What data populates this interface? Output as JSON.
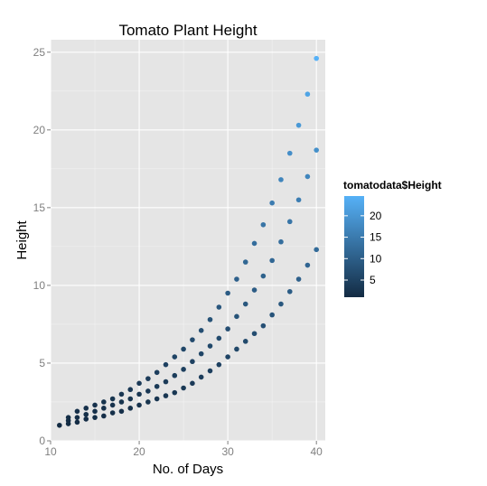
{
  "chart_data": {
    "type": "scatter",
    "title": "Tomato Plant Height",
    "xlabel": "No. of Days",
    "ylabel": "Height",
    "xlim": [
      10,
      41
    ],
    "ylim": [
      0,
      25.8
    ],
    "xticks": [
      10,
      20,
      30,
      40
    ],
    "yticks": [
      0,
      5,
      10,
      15,
      20,
      25
    ],
    "grid": true,
    "legend": {
      "title": "tomatodata$Height",
      "placement": "right",
      "ticks": [
        5,
        10,
        15,
        20
      ],
      "range": [
        1,
        24.6
      ],
      "low_color": "#132B43",
      "high_color": "#56B1F7"
    },
    "series": [
      {
        "values": [
          {
            "x": 11,
            "y": 1.0
          },
          {
            "x": 12,
            "y": 1.5
          },
          {
            "x": 13,
            "y": 1.9
          },
          {
            "x": 14,
            "y": 2.1
          },
          {
            "x": 15,
            "y": 2.3
          },
          {
            "x": 16,
            "y": 2.5
          },
          {
            "x": 17,
            "y": 2.7
          },
          {
            "x": 18,
            "y": 3.0
          },
          {
            "x": 19,
            "y": 3.3
          },
          {
            "x": 20,
            "y": 3.7
          },
          {
            "x": 21,
            "y": 4.0
          },
          {
            "x": 22,
            "y": 4.4
          },
          {
            "x": 23,
            "y": 4.9
          },
          {
            "x": 24,
            "y": 5.4
          },
          {
            "x": 25,
            "y": 5.9
          },
          {
            "x": 26,
            "y": 6.5
          },
          {
            "x": 27,
            "y": 7.1
          },
          {
            "x": 28,
            "y": 7.8
          },
          {
            "x": 29,
            "y": 8.6
          },
          {
            "x": 30,
            "y": 9.5
          },
          {
            "x": 31,
            "y": 10.4
          },
          {
            "x": 32,
            "y": 11.5
          },
          {
            "x": 33,
            "y": 12.7
          },
          {
            "x": 34,
            "y": 13.9
          },
          {
            "x": 35,
            "y": 15.3
          },
          {
            "x": 36,
            "y": 16.8
          },
          {
            "x": 37,
            "y": 18.5
          },
          {
            "x": 38,
            "y": 20.3
          },
          {
            "x": 39,
            "y": 22.3
          },
          {
            "x": 40,
            "y": 24.6
          }
        ]
      },
      {
        "values": [
          {
            "x": 12,
            "y": 1.3
          },
          {
            "x": 13,
            "y": 1.5
          },
          {
            "x": 14,
            "y": 1.7
          },
          {
            "x": 15,
            "y": 1.9
          },
          {
            "x": 16,
            "y": 2.1
          },
          {
            "x": 17,
            "y": 2.3
          },
          {
            "x": 18,
            "y": 2.5
          },
          {
            "x": 19,
            "y": 2.7
          },
          {
            "x": 20,
            "y": 3.0
          },
          {
            "x": 21,
            "y": 3.2
          },
          {
            "x": 22,
            "y": 3.5
          },
          {
            "x": 23,
            "y": 3.8
          },
          {
            "x": 24,
            "y": 4.2
          },
          {
            "x": 25,
            "y": 4.6
          },
          {
            "x": 26,
            "y": 5.1
          },
          {
            "x": 27,
            "y": 5.6
          },
          {
            "x": 28,
            "y": 6.1
          },
          {
            "x": 29,
            "y": 6.6
          },
          {
            "x": 30,
            "y": 7.2
          },
          {
            "x": 31,
            "y": 8.0
          },
          {
            "x": 32,
            "y": 8.8
          },
          {
            "x": 33,
            "y": 9.7
          },
          {
            "x": 34,
            "y": 10.6
          },
          {
            "x": 35,
            "y": 11.6
          },
          {
            "x": 36,
            "y": 12.8
          },
          {
            "x": 37,
            "y": 14.1
          },
          {
            "x": 38,
            "y": 15.5
          },
          {
            "x": 39,
            "y": 17.0
          },
          {
            "x": 40,
            "y": 18.7
          }
        ]
      },
      {
        "values": [
          {
            "x": 12,
            "y": 1.1
          },
          {
            "x": 13,
            "y": 1.2
          },
          {
            "x": 14,
            "y": 1.4
          },
          {
            "x": 15,
            "y": 1.5
          },
          {
            "x": 16,
            "y": 1.6
          },
          {
            "x": 17,
            "y": 1.8
          },
          {
            "x": 18,
            "y": 1.9
          },
          {
            "x": 19,
            "y": 2.1
          },
          {
            "x": 20,
            "y": 2.3
          },
          {
            "x": 21,
            "y": 2.5
          },
          {
            "x": 22,
            "y": 2.7
          },
          {
            "x": 23,
            "y": 2.9
          },
          {
            "x": 24,
            "y": 3.1
          },
          {
            "x": 25,
            "y": 3.4
          },
          {
            "x": 26,
            "y": 3.7
          },
          {
            "x": 27,
            "y": 4.1
          },
          {
            "x": 28,
            "y": 4.5
          },
          {
            "x": 29,
            "y": 4.9
          },
          {
            "x": 30,
            "y": 5.4
          },
          {
            "x": 31,
            "y": 5.9
          },
          {
            "x": 32,
            "y": 6.4
          },
          {
            "x": 33,
            "y": 6.9
          },
          {
            "x": 34,
            "y": 7.4
          },
          {
            "x": 35,
            "y": 8.1
          },
          {
            "x": 36,
            "y": 8.8
          },
          {
            "x": 37,
            "y": 9.6
          },
          {
            "x": 38,
            "y": 10.4
          },
          {
            "x": 39,
            "y": 11.3
          },
          {
            "x": 40,
            "y": 12.3
          }
        ]
      }
    ]
  }
}
